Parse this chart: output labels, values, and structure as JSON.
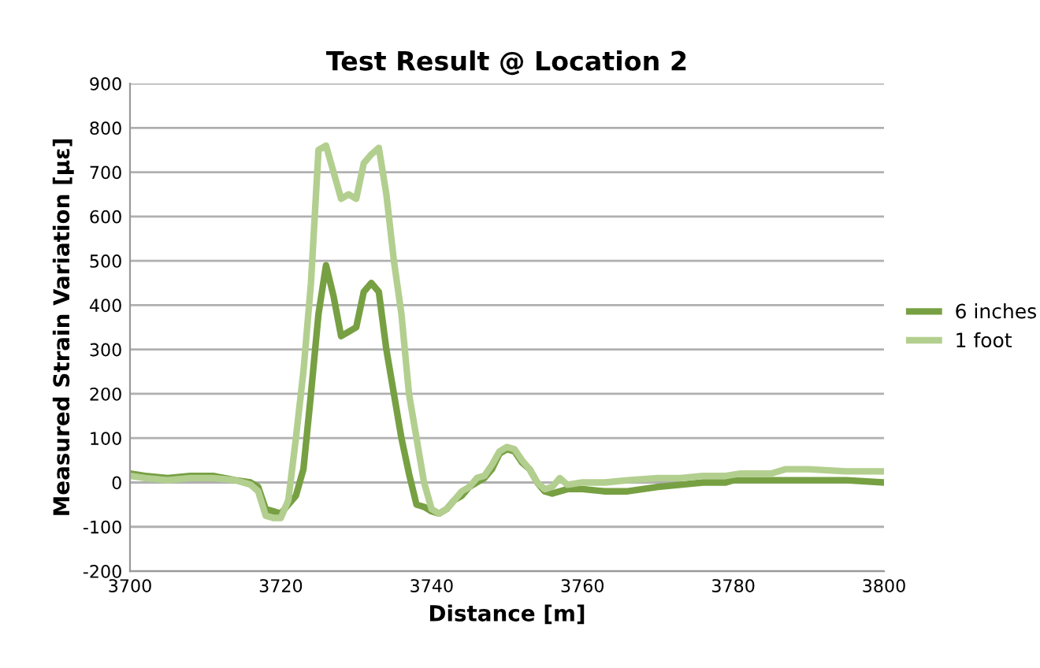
{
  "chart_data": {
    "type": "line",
    "title": "Test Result @ Location 2",
    "xlabel": "Distance [m]",
    "ylabel": "Measured Strain Variation [με]",
    "xlim": [
      3700,
      3800
    ],
    "xticks": [
      3700,
      3720,
      3740,
      3760,
      3780,
      3800
    ],
    "ylim": [
      -200,
      900
    ],
    "yticks": [
      -200,
      -100,
      0,
      100,
      200,
      300,
      400,
      500,
      600,
      700,
      800,
      900
    ],
    "grid": "y",
    "legend": "right",
    "marker": "none",
    "line_style": "solid",
    "series": [
      {
        "name": "6 inches",
        "color": "#77a043",
        "x": [
          3700,
          3702,
          3705,
          3708,
          3711,
          3714,
          3716,
          3717,
          3718,
          3719,
          3720,
          3721,
          3722,
          3723,
          3724,
          3725,
          3726,
          3727,
          3728,
          3729,
          3730,
          3731,
          3732,
          3733,
          3734,
          3735,
          3736,
          3737,
          3738,
          3739,
          3740,
          3741,
          3742,
          3743,
          3744,
          3745,
          3746,
          3747,
          3748,
          3749,
          3750,
          3751,
          3752,
          3753,
          3754,
          3755,
          3756,
          3758,
          3760,
          3763,
          3766,
          3770,
          3773,
          3776,
          3779,
          3780,
          3785,
          3790,
          3795,
          3800
        ],
        "values": [
          20,
          15,
          10,
          15,
          15,
          5,
          0,
          -10,
          -60,
          -65,
          -70,
          -50,
          -30,
          30,
          200,
          380,
          490,
          420,
          330,
          340,
          350,
          430,
          450,
          430,
          300,
          200,
          100,
          20,
          -50,
          -55,
          -65,
          -70,
          -60,
          -40,
          -30,
          -10,
          0,
          10,
          30,
          65,
          75,
          70,
          45,
          30,
          0,
          -20,
          -25,
          -15,
          -15,
          -20,
          -20,
          -10,
          -5,
          0,
          0,
          5,
          5,
          5,
          5,
          0
        ]
      },
      {
        "name": "1 foot",
        "color": "#b3cf8f",
        "x": [
          3700,
          3702,
          3705,
          3708,
          3711,
          3714,
          3716,
          3717,
          3718,
          3719,
          3720,
          3721,
          3722,
          3723,
          3724,
          3725,
          3726,
          3727,
          3728,
          3729,
          3730,
          3731,
          3732,
          3733,
          3734,
          3735,
          3736,
          3737,
          3738,
          3739,
          3740,
          3741,
          3742,
          3743,
          3744,
          3745,
          3746,
          3747,
          3748,
          3749,
          3750,
          3751,
          3752,
          3753,
          3754,
          3755,
          3756,
          3757,
          3758,
          3760,
          3763,
          3766,
          3770,
          3773,
          3776,
          3779,
          3781,
          3785,
          3787,
          3790,
          3795,
          3800
        ],
        "values": [
          15,
          10,
          5,
          10,
          10,
          5,
          -5,
          -20,
          -75,
          -80,
          -80,
          -40,
          100,
          250,
          450,
          750,
          760,
          700,
          640,
          650,
          640,
          720,
          740,
          755,
          650,
          500,
          380,
          200,
          100,
          0,
          -60,
          -70,
          -60,
          -40,
          -20,
          -10,
          10,
          15,
          40,
          70,
          80,
          75,
          50,
          30,
          0,
          -15,
          -10,
          10,
          -5,
          0,
          0,
          5,
          10,
          10,
          15,
          15,
          20,
          20,
          30,
          30,
          25,
          25
        ]
      }
    ]
  }
}
